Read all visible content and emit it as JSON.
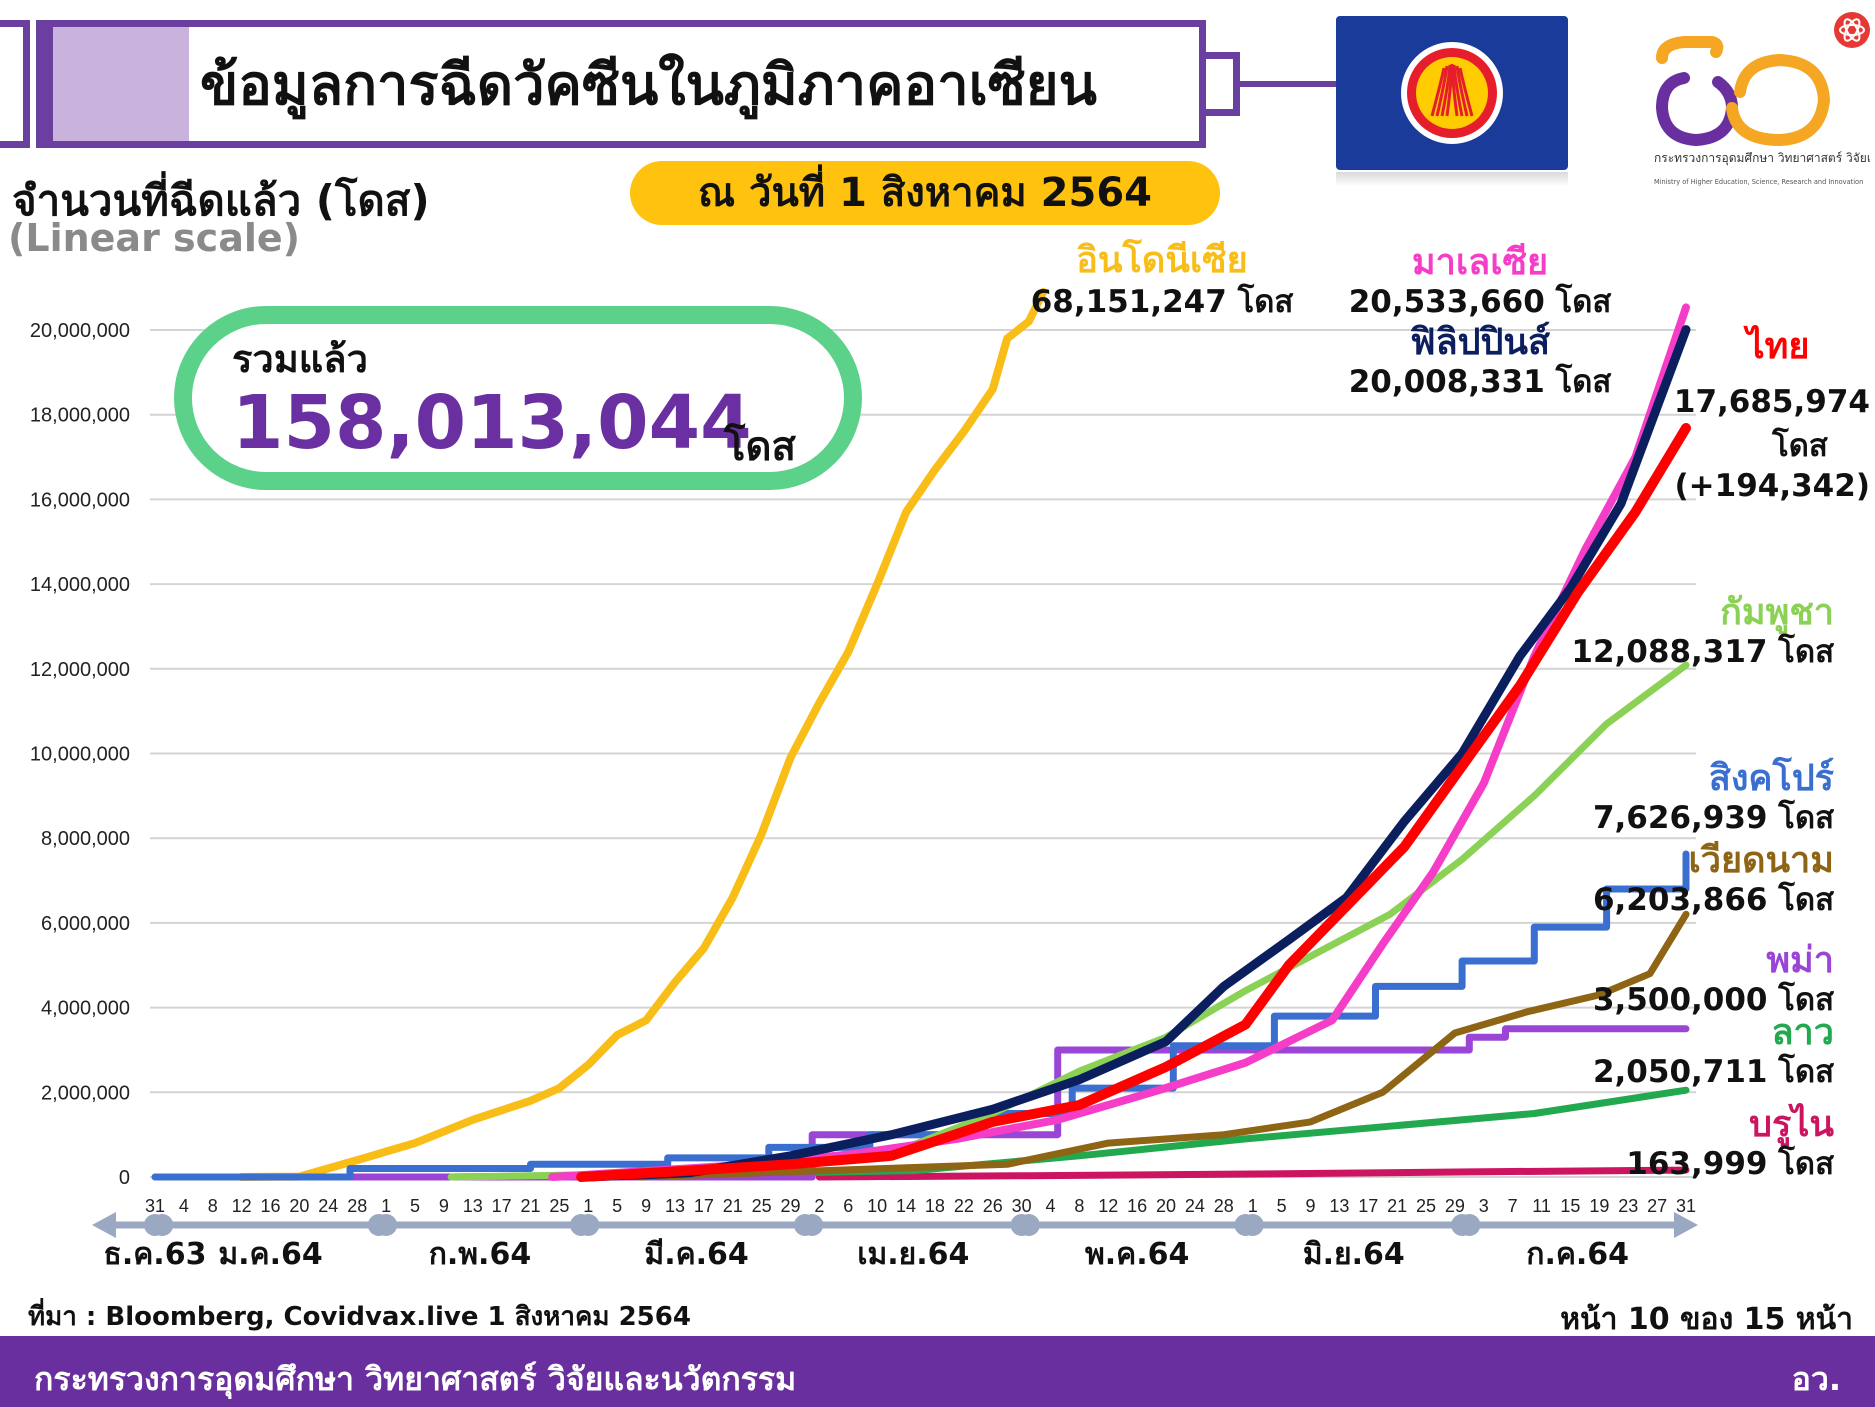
{
  "header": {
    "title": "ข้อมูลการฉีดวัคซีนในภูมิภาคอาเซียน",
    "date": "ณ วันที่ 1 สิงหาคม 2564"
  },
  "logo": {
    "ministry_th": "กระทรวงการอุดมศึกษา วิทยาศาสตร์ วิจัยและนวัตกรรม",
    "ministry_en": "Ministry of Higher Education, Science, Research and Innovation"
  },
  "summary": {
    "label": "รวมแล้ว",
    "value": "158,013,044",
    "unit": "โดส"
  },
  "footer": {
    "source": "ที่มา : Bloomberg, Covidvax.live 1 สิงหาคม 2564",
    "page": "หน้า 10 ของ 15 หน้า",
    "org": "กระทรวงการอุดมศึกษา วิทยาศาสตร์ วิจัยและนวัตกรรม",
    "abbr": "อว."
  },
  "chart_data": {
    "type": "line",
    "ylabel": "จำนวนที่ฉีดแล้ว (โดส)",
    "scale_note": "(Linear scale)",
    "ylim": [
      0,
      20000000
    ],
    "yticks": [
      "0",
      "2,000,000",
      "4,000,000",
      "6,000,000",
      "8,000,000",
      "10,000,000",
      "12,000,000",
      "14,000,000",
      "16,000,000",
      "18,000,000",
      "20,000,000"
    ],
    "xlim": [
      "2020-12-31",
      "2021-07-31"
    ],
    "xticks": [
      {
        "date": "2020-12-31",
        "label": "31"
      },
      {
        "date": "2021-01-04",
        "label": "4"
      },
      {
        "date": "2021-01-08",
        "label": "8"
      },
      {
        "date": "2021-01-12",
        "label": "12"
      },
      {
        "date": "2021-01-16",
        "label": "16"
      },
      {
        "date": "2021-01-20",
        "label": "20"
      },
      {
        "date": "2021-01-24",
        "label": "24"
      },
      {
        "date": "2021-01-28",
        "label": "28"
      },
      {
        "date": "2021-02-01",
        "label": "1"
      },
      {
        "date": "2021-02-05",
        "label": "5"
      },
      {
        "date": "2021-02-09",
        "label": "9"
      },
      {
        "date": "2021-02-13",
        "label": "13"
      },
      {
        "date": "2021-02-17",
        "label": "17"
      },
      {
        "date": "2021-02-21",
        "label": "21"
      },
      {
        "date": "2021-02-25",
        "label": "25"
      },
      {
        "date": "2021-03-01",
        "label": "1"
      },
      {
        "date": "2021-03-05",
        "label": "5"
      },
      {
        "date": "2021-03-09",
        "label": "9"
      },
      {
        "date": "2021-03-13",
        "label": "13"
      },
      {
        "date": "2021-03-17",
        "label": "17"
      },
      {
        "date": "2021-03-21",
        "label": "21"
      },
      {
        "date": "2021-03-25",
        "label": "25"
      },
      {
        "date": "2021-03-29",
        "label": "29"
      },
      {
        "date": "2021-04-02",
        "label": "2"
      },
      {
        "date": "2021-04-06",
        "label": "6"
      },
      {
        "date": "2021-04-10",
        "label": "10"
      },
      {
        "date": "2021-04-14",
        "label": "14"
      },
      {
        "date": "2021-04-18",
        "label": "18"
      },
      {
        "date": "2021-04-22",
        "label": "22"
      },
      {
        "date": "2021-04-26",
        "label": "26"
      },
      {
        "date": "2021-04-30",
        "label": "30"
      },
      {
        "date": "2021-05-04",
        "label": "4"
      },
      {
        "date": "2021-05-08",
        "label": "8"
      },
      {
        "date": "2021-05-12",
        "label": "12"
      },
      {
        "date": "2021-05-16",
        "label": "16"
      },
      {
        "date": "2021-05-20",
        "label": "20"
      },
      {
        "date": "2021-05-24",
        "label": "24"
      },
      {
        "date": "2021-05-28",
        "label": "28"
      },
      {
        "date": "2021-06-01",
        "label": "1"
      },
      {
        "date": "2021-06-05",
        "label": "5"
      },
      {
        "date": "2021-06-09",
        "label": "9"
      },
      {
        "date": "2021-06-13",
        "label": "13"
      },
      {
        "date": "2021-06-17",
        "label": "17"
      },
      {
        "date": "2021-06-21",
        "label": "21"
      },
      {
        "date": "2021-06-25",
        "label": "25"
      },
      {
        "date": "2021-06-29",
        "label": "29"
      },
      {
        "date": "2021-07-03",
        "label": "3"
      },
      {
        "date": "2021-07-07",
        "label": "7"
      },
      {
        "date": "2021-07-11",
        "label": "11"
      },
      {
        "date": "2021-07-15",
        "label": "15"
      },
      {
        "date": "2021-07-19",
        "label": "19"
      },
      {
        "date": "2021-07-23",
        "label": "23"
      },
      {
        "date": "2021-07-27",
        "label": "27"
      },
      {
        "date": "2021-07-31",
        "label": "31"
      }
    ],
    "month_boundaries": [
      "2020-12-31",
      "2021-01-01",
      "2021-01-31",
      "2021-02-01",
      "2021-02-28",
      "2021-03-01",
      "2021-03-31",
      "2021-04-01",
      "2021-04-30",
      "2021-05-01",
      "2021-05-31",
      "2021-06-01",
      "2021-06-30",
      "2021-07-01"
    ],
    "months": [
      {
        "label": "ธ.ค.63",
        "center": "2020-12-31"
      },
      {
        "label": "ม.ค.64",
        "center": "2021-01-16"
      },
      {
        "label": "ก.พ.64",
        "center": "2021-02-14"
      },
      {
        "label": "มี.ค.64",
        "center": "2021-03-16"
      },
      {
        "label": "เม.ย.64",
        "center": "2021-04-15"
      },
      {
        "label": "พ.ค.64",
        "center": "2021-05-16"
      },
      {
        "label": "มิ.ย.64",
        "center": "2021-06-15"
      },
      {
        "label": "ก.ค.64",
        "center": "2021-07-16"
      }
    ],
    "series": [
      {
        "name": "อินโดนีเซีย",
        "color": "#f9bd18",
        "final_label": "68,151,247 โดส",
        "step": false,
        "points": [
          [
            "2021-01-12",
            0
          ],
          [
            "2021-01-20",
            10000
          ],
          [
            "2021-01-28",
            400000
          ],
          [
            "2021-02-05",
            800000
          ],
          [
            "2021-02-13",
            1350000
          ],
          [
            "2021-02-21",
            1800000
          ],
          [
            "2021-02-25",
            2100000
          ],
          [
            "2021-03-01",
            2650000
          ],
          [
            "2021-03-05",
            3350000
          ],
          [
            "2021-03-09",
            3700000
          ],
          [
            "2021-03-13",
            4600000
          ],
          [
            "2021-03-17",
            5400000
          ],
          [
            "2021-03-21",
            6600000
          ],
          [
            "2021-03-25",
            8100000
          ],
          [
            "2021-03-29",
            9900000
          ],
          [
            "2021-04-02",
            11200000
          ],
          [
            "2021-04-06",
            12400000
          ],
          [
            "2021-04-10",
            14000000
          ],
          [
            "2021-04-14",
            15700000
          ],
          [
            "2021-04-18",
            16700000
          ],
          [
            "2021-04-22",
            17600000
          ],
          [
            "2021-04-26",
            18600000
          ],
          [
            "2021-04-28",
            19800000
          ],
          [
            "2021-05-01",
            20200000
          ],
          [
            "2021-05-03",
            20900000
          ]
        ]
      },
      {
        "name": "มาเลเซีย",
        "color": "#f53dc8",
        "final_label": "20,533,660 โดส",
        "step": false,
        "points": [
          [
            "2021-02-24",
            0
          ],
          [
            "2021-03-10",
            150000
          ],
          [
            "2021-03-24",
            300000
          ],
          [
            "2021-04-07",
            550000
          ],
          [
            "2021-04-21",
            900000
          ],
          [
            "2021-05-05",
            1350000
          ],
          [
            "2021-05-19",
            2050000
          ],
          [
            "2021-05-31",
            2700000
          ],
          [
            "2021-06-12",
            3700000
          ],
          [
            "2021-06-19",
            5500000
          ],
          [
            "2021-06-26",
            7200000
          ],
          [
            "2021-07-03",
            9300000
          ],
          [
            "2021-07-10",
            12300000
          ],
          [
            "2021-07-17",
            14800000
          ],
          [
            "2021-07-24",
            17000000
          ],
          [
            "2021-07-31",
            20533660
          ]
        ]
      },
      {
        "name": "ฟิลิปปินส์",
        "color": "#0b1f5e",
        "final_label": "20,008,331 โดส",
        "step": false,
        "points": [
          [
            "2021-03-01",
            0
          ],
          [
            "2021-03-15",
            100000
          ],
          [
            "2021-03-29",
            500000
          ],
          [
            "2021-04-12",
            1000000
          ],
          [
            "2021-04-26",
            1600000
          ],
          [
            "2021-05-08",
            2300000
          ],
          [
            "2021-05-20",
            3200000
          ],
          [
            "2021-05-28",
            4500000
          ],
          [
            "2021-06-06",
            5600000
          ],
          [
            "2021-06-14",
            6600000
          ],
          [
            "2021-06-22",
            8400000
          ],
          [
            "2021-06-30",
            10000000
          ],
          [
            "2021-07-08",
            12300000
          ],
          [
            "2021-07-15",
            13900000
          ],
          [
            "2021-07-22",
            15900000
          ],
          [
            "2021-07-31",
            20008331
          ]
        ]
      },
      {
        "name": "ไทย",
        "color": "#ff0000",
        "final_label": "17,685,974",
        "extra_labels": [
          "โดส",
          "(+194,342)"
        ],
        "step": false,
        "points": [
          [
            "2021-02-28",
            0
          ],
          [
            "2021-03-15",
            150000
          ],
          [
            "2021-03-29",
            300000
          ],
          [
            "2021-04-12",
            500000
          ],
          [
            "2021-04-26",
            1300000
          ],
          [
            "2021-05-08",
            1700000
          ],
          [
            "2021-05-20",
            2600000
          ],
          [
            "2021-05-31",
            3600000
          ],
          [
            "2021-06-06",
            5000000
          ],
          [
            "2021-06-14",
            6400000
          ],
          [
            "2021-06-22",
            7800000
          ],
          [
            "2021-06-30",
            9700000
          ],
          [
            "2021-07-08",
            11600000
          ],
          [
            "2021-07-16",
            13800000
          ],
          [
            "2021-07-24",
            15700000
          ],
          [
            "2021-07-31",
            17685974
          ]
        ]
      },
      {
        "name": "กัมพูชา",
        "color": "#8bd155",
        "final_label": "12,088,317 โดส",
        "step": false,
        "points": [
          [
            "2021-02-10",
            0
          ],
          [
            "2021-02-28",
            50000
          ],
          [
            "2021-03-15",
            150000
          ],
          [
            "2021-03-29",
            300000
          ],
          [
            "2021-04-12",
            550000
          ],
          [
            "2021-04-26",
            1500000
          ],
          [
            "2021-05-08",
            2500000
          ],
          [
            "2021-05-20",
            3300000
          ],
          [
            "2021-05-31",
            4400000
          ],
          [
            "2021-06-10",
            5300000
          ],
          [
            "2021-06-20",
            6200000
          ],
          [
            "2021-06-30",
            7500000
          ],
          [
            "2021-07-10",
            9000000
          ],
          [
            "2021-07-20",
            10700000
          ],
          [
            "2021-07-31",
            12088317
          ]
        ]
      },
      {
        "name": "สิงคโปร์",
        "color": "#3b6fcf",
        "final_label": "7,626,939 โดส",
        "step": true,
        "points": [
          [
            "2020-12-31",
            0
          ],
          [
            "2021-01-27",
            200000
          ],
          [
            "2021-02-21",
            300000
          ],
          [
            "2021-03-12",
            450000
          ],
          [
            "2021-03-26",
            700000
          ],
          [
            "2021-04-09",
            1000000
          ],
          [
            "2021-04-23",
            1500000
          ],
          [
            "2021-05-07",
            2100000
          ],
          [
            "2021-05-21",
            3100000
          ],
          [
            "2021-06-04",
            3800000
          ],
          [
            "2021-06-18",
            4500000
          ],
          [
            "2021-06-30",
            5100000
          ],
          [
            "2021-07-10",
            5900000
          ],
          [
            "2021-07-20",
            6800000
          ],
          [
            "2021-07-31",
            7626939
          ]
        ]
      },
      {
        "name": "เวียดนาม",
        "color": "#8e6415",
        "final_label": "6,203,866 โดส",
        "step": false,
        "points": [
          [
            "2021-03-08",
            0
          ],
          [
            "2021-04-28",
            300000
          ],
          [
            "2021-05-12",
            800000
          ],
          [
            "2021-05-28",
            1000000
          ],
          [
            "2021-06-09",
            1300000
          ],
          [
            "2021-06-19",
            2000000
          ],
          [
            "2021-06-29",
            3400000
          ],
          [
            "2021-07-09",
            3900000
          ],
          [
            "2021-07-19",
            4300000
          ],
          [
            "2021-07-26",
            4800000
          ],
          [
            "2021-07-31",
            6203866
          ]
        ]
      },
      {
        "name": "พม่า",
        "color": "#9b45d6",
        "final_label": "3,500,000 โดส",
        "step": true,
        "points": [
          [
            "2021-01-27",
            0
          ],
          [
            "2021-04-01",
            1000000
          ],
          [
            "2021-05-05",
            3000000
          ],
          [
            "2021-07-01",
            3300000
          ],
          [
            "2021-07-06",
            3500000
          ],
          [
            "2021-07-31",
            3500000
          ]
        ]
      },
      {
        "name": "ลาว",
        "color": "#22a94f",
        "final_label": "2,050,711 โดส",
        "step": false,
        "points": [
          [
            "2021-02-09",
            0
          ],
          [
            "2021-03-12",
            50000
          ],
          [
            "2021-04-15",
            150000
          ],
          [
            "2021-05-08",
            500000
          ],
          [
            "2021-05-31",
            900000
          ],
          [
            "2021-06-20",
            1200000
          ],
          [
            "2021-07-10",
            1500000
          ],
          [
            "2021-07-31",
            2050711
          ]
        ]
      },
      {
        "name": "บรูไน",
        "color": "#cc1461",
        "final_label": "163,999 โดส",
        "step": false,
        "points": [
          [
            "2021-04-02",
            0
          ],
          [
            "2021-05-01",
            30000
          ],
          [
            "2021-06-01",
            70000
          ],
          [
            "2021-07-01",
            120000
          ],
          [
            "2021-07-31",
            163999
          ]
        ]
      }
    ]
  }
}
